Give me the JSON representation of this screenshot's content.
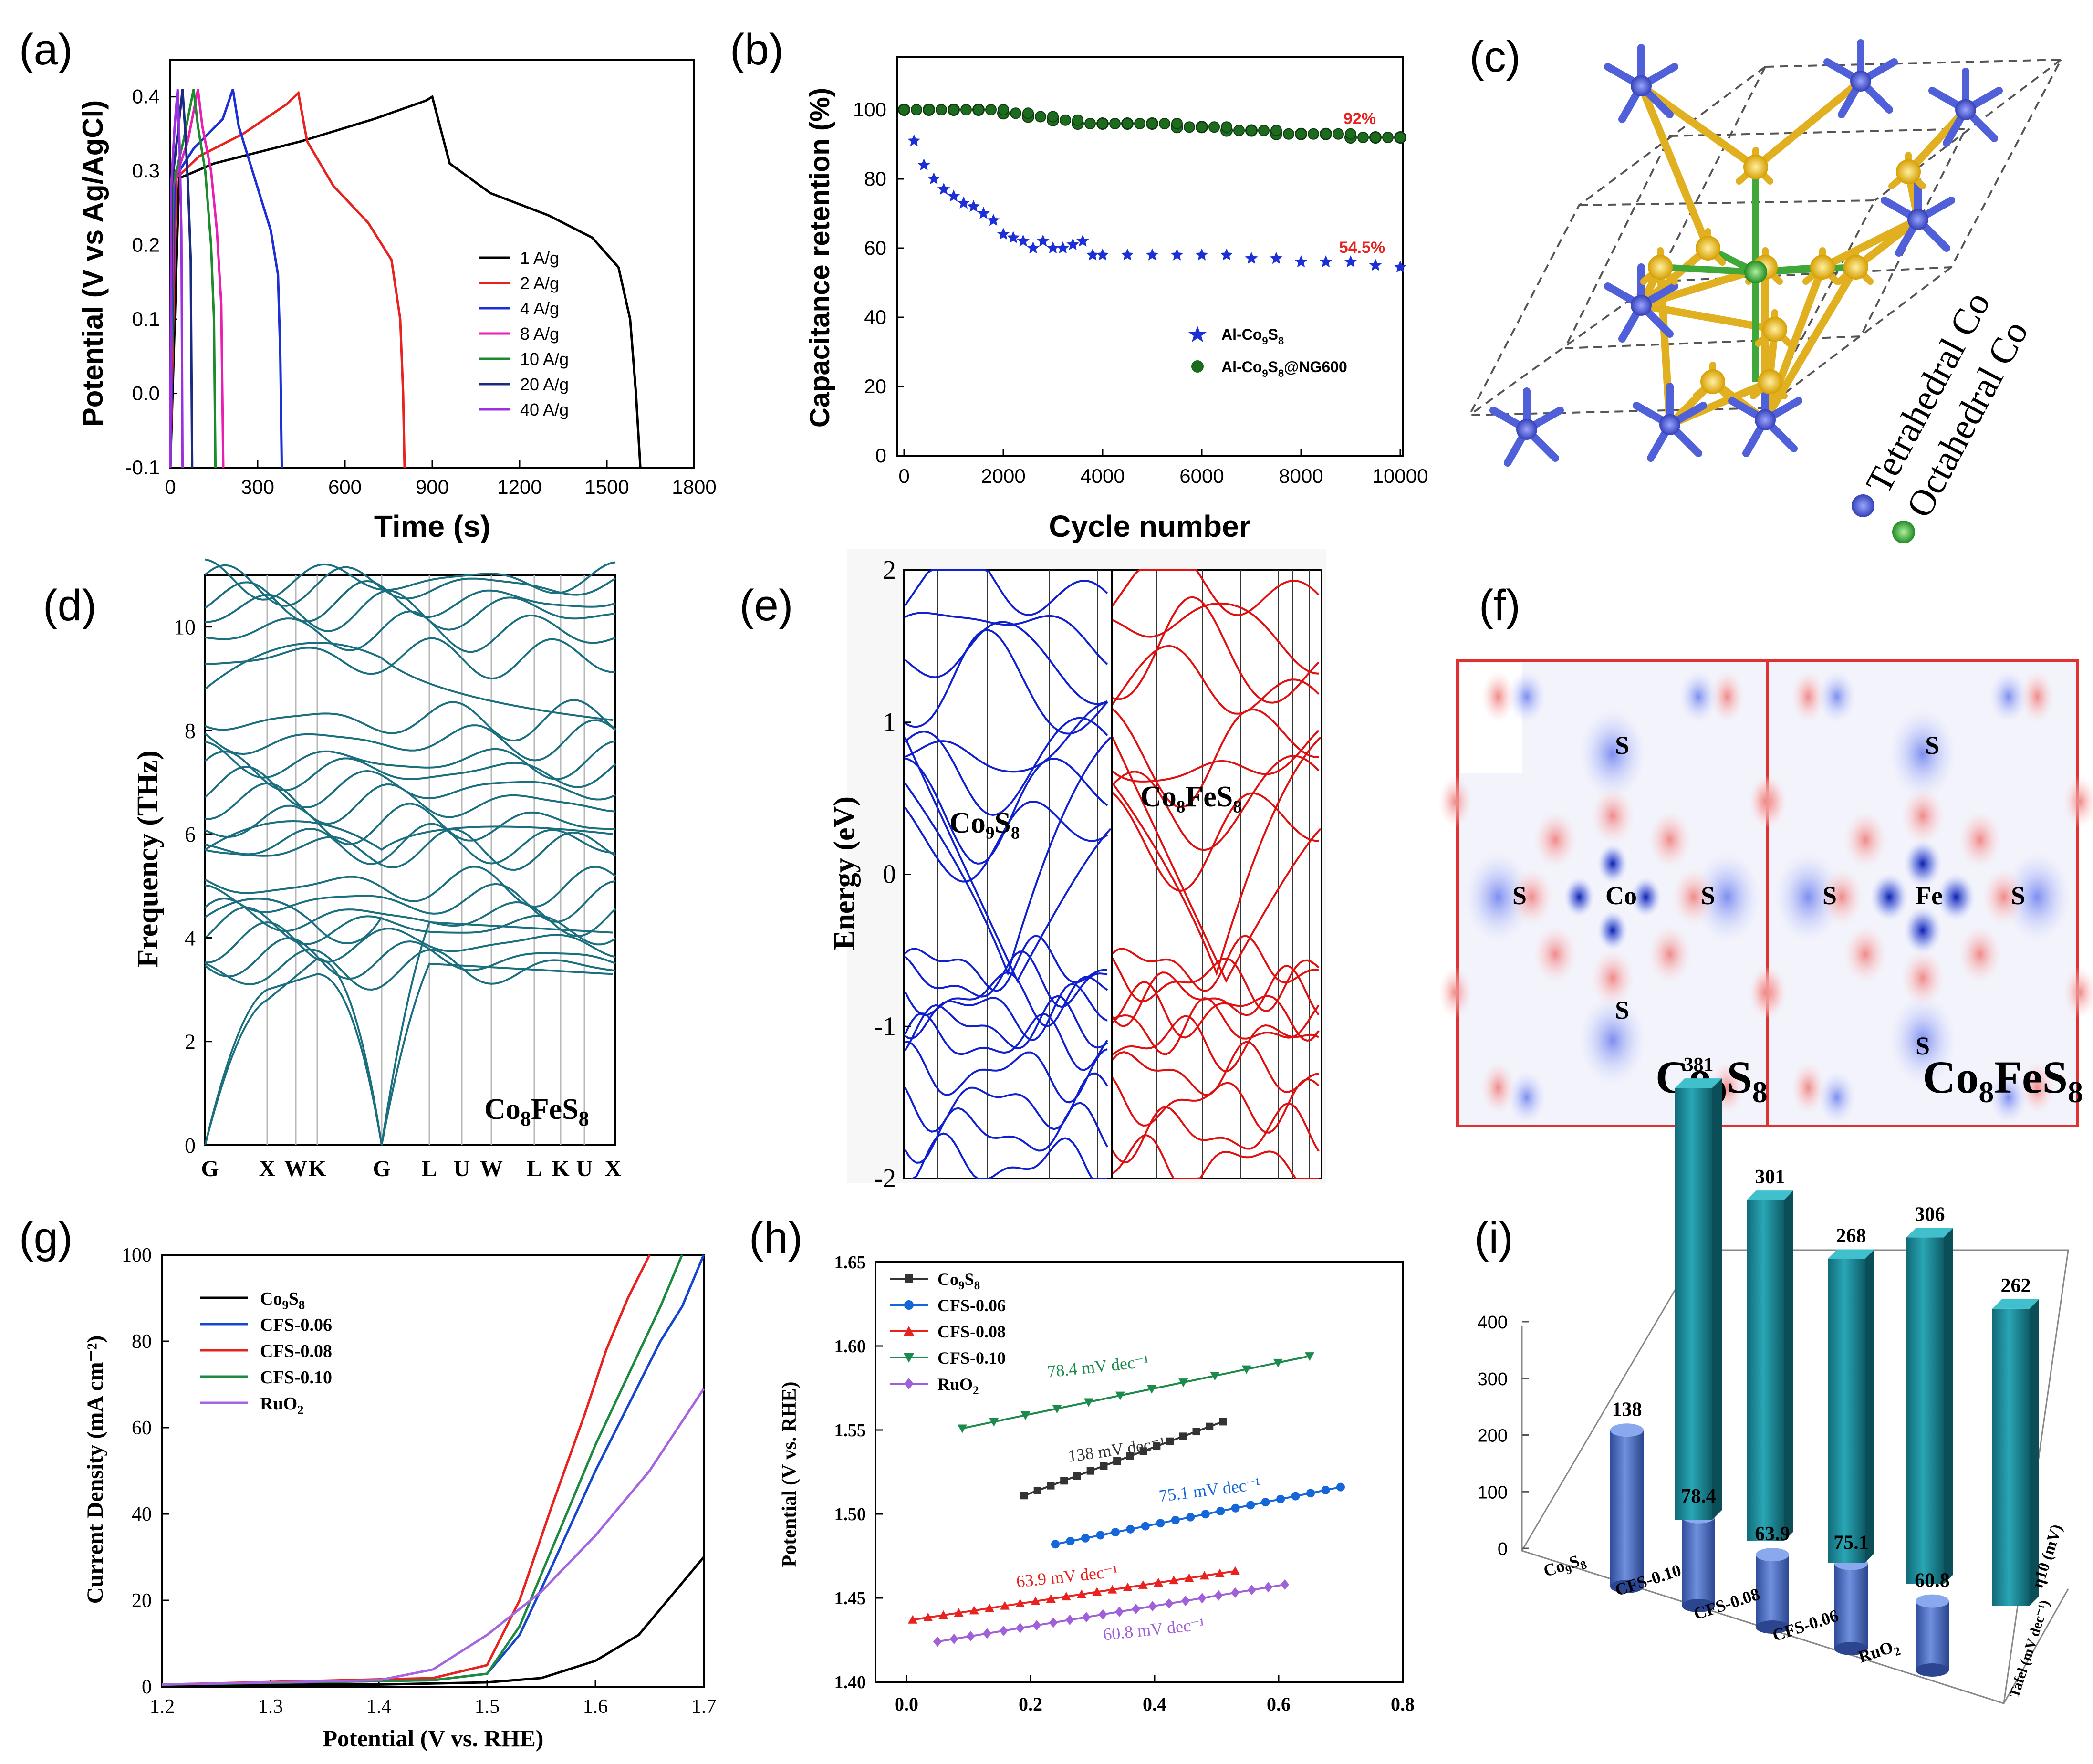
{
  "figure": {
    "panel_labels": [
      "(a)",
      "(b)",
      "(c)",
      "(d)",
      "(e)",
      "(f)",
      "(g)",
      "(h)",
      "(i)"
    ]
  },
  "chart_data": [
    {
      "id": "a",
      "type": "line",
      "xlabel": "Time (s)",
      "ylabel": "Potential (V vs Ag/AgCl)",
      "xlim": [
        0,
        1800
      ],
      "ylim": [
        -0.1,
        0.45
      ],
      "xticks": [
        "0",
        "300",
        "600",
        "900",
        "1200",
        "1500",
        "1800"
      ],
      "yticks": [
        "-0.1",
        "0.0",
        "0.1",
        "0.2",
        "0.3",
        "0.4"
      ],
      "legend_position": "center-right",
      "series": [
        {
          "name": "1 A/g",
          "color": "#000000",
          "x": [
            0,
            30,
            150,
            450,
            700,
            880,
            900,
            960,
            1100,
            1300,
            1450,
            1540,
            1580,
            1600,
            1615
          ],
          "y": [
            -0.1,
            0.29,
            0.31,
            0.34,
            0.37,
            0.395,
            0.4,
            0.31,
            0.27,
            0.24,
            0.21,
            0.17,
            0.1,
            0.0,
            -0.1
          ]
        },
        {
          "name": "2 A/g",
          "color": "#e8231f",
          "x": [
            0,
            20,
            100,
            250,
            400,
            440,
            470,
            560,
            680,
            760,
            790,
            800,
            805
          ],
          "y": [
            -0.1,
            0.29,
            0.32,
            0.35,
            0.39,
            0.405,
            0.34,
            0.28,
            0.23,
            0.18,
            0.1,
            0.0,
            -0.1
          ]
        },
        {
          "name": "4 A/g",
          "color": "#1c2fd6",
          "x": [
            0,
            15,
            80,
            180,
            215,
            235,
            290,
            345,
            370,
            378,
            383
          ],
          "y": [
            -0.1,
            0.29,
            0.33,
            0.37,
            0.41,
            0.36,
            0.29,
            0.22,
            0.16,
            0.05,
            -0.1
          ]
        },
        {
          "name": "8 A/g",
          "color": "#e81fb0",
          "x": [
            0,
            10,
            60,
            95,
            110,
            140,
            160,
            175,
            182
          ],
          "y": [
            -0.1,
            0.28,
            0.34,
            0.41,
            0.36,
            0.3,
            0.22,
            0.12,
            -0.1
          ]
        },
        {
          "name": "10 A/g",
          "color": "#1e8a2e",
          "x": [
            0,
            8,
            45,
            80,
            95,
            120,
            140,
            150,
            155
          ],
          "y": [
            -0.1,
            0.28,
            0.34,
            0.41,
            0.36,
            0.3,
            0.2,
            0.1,
            -0.1
          ]
        },
        {
          "name": "20 A/g",
          "color": "#1a2a80",
          "x": [
            0,
            5,
            25,
            42,
            52,
            62,
            70,
            75
          ],
          "y": [
            -0.1,
            0.28,
            0.35,
            0.41,
            0.35,
            0.27,
            0.18,
            -0.1
          ]
        },
        {
          "name": "40 A/g",
          "color": "#9b30e0",
          "x": [
            0,
            3,
            15,
            25,
            32,
            38,
            42
          ],
          "y": [
            -0.1,
            0.28,
            0.36,
            0.41,
            0.33,
            0.22,
            -0.1
          ]
        }
      ]
    },
    {
      "id": "b",
      "type": "scatter",
      "xlabel": "Cycle number",
      "ylabel": "Capacitance retention (%)",
      "xlim": [
        0,
        10000
      ],
      "ylim": [
        0,
        115
      ],
      "xticks": [
        "0",
        "2000",
        "4000",
        "6000",
        "8000",
        "10000"
      ],
      "yticks": [
        "0",
        "20",
        "40",
        "60",
        "80",
        "100"
      ],
      "annotations": [
        {
          "text": "92%",
          "x": 9700,
          "y": 98
        },
        {
          "text": "54.5%",
          "x": 9600,
          "y": 59
        }
      ],
      "series": [
        {
          "name": "Al-Co9S8",
          "legend_text": "Al-Co",
          "sub1": "9",
          "mid": "S",
          "sub2": "8",
          "tail": "",
          "color": "#1c2fd6",
          "marker": "star",
          "x": [
            200,
            400,
            600,
            800,
            1000,
            1200,
            1400,
            1600,
            1800,
            2000,
            2200,
            2400,
            2600,
            2800,
            3000,
            3200,
            3400,
            3600,
            3800,
            4000,
            4500,
            5000,
            5500,
            6000,
            6500,
            7000,
            7500,
            8000,
            8500,
            9000,
            9500,
            10000
          ],
          "y": [
            91,
            84,
            80,
            77,
            75,
            73,
            72,
            70,
            68,
            64,
            63,
            62,
            60,
            62,
            60,
            60,
            61,
            62,
            58,
            58,
            58,
            58,
            58,
            58,
            58,
            57,
            57,
            56,
            56,
            56,
            55,
            54.5
          ]
        },
        {
          "name": "Al-Co9S8@NG600",
          "legend_text": "Al-Co",
          "sub1": "9",
          "mid": "S",
          "sub2": "8",
          "tail": "@NG600",
          "color": "#1d6b1f",
          "marker": "circle",
          "x": [
            0,
            500,
            1000,
            1500,
            2000,
            2500,
            3000,
            3500,
            4000,
            4500,
            5000,
            5500,
            6000,
            6500,
            7000,
            7500,
            8000,
            8500,
            9000,
            9500,
            10000
          ],
          "y": [
            100,
            100,
            100,
            100,
            99,
            98,
            97,
            96,
            96,
            96,
            96,
            95,
            95,
            94,
            94,
            93,
            93,
            93,
            92,
            92,
            92
          ]
        }
      ]
    },
    {
      "id": "d",
      "type": "line",
      "ylabel": "Frequency (THz)",
      "ylim": [
        0,
        11
      ],
      "yticks": [
        "0",
        "2",
        "4",
        "6",
        "8",
        "10"
      ],
      "kpoints": [
        "G",
        "X",
        "W",
        "K",
        "G",
        "L",
        "U",
        "W",
        "L",
        "K",
        "U",
        "X"
      ],
      "label": "Co8FeS8",
      "label_parts": {
        "a": "Co",
        "b": "8",
        "c": "FeS",
        "d": "8"
      },
      "color": "#1a6f7f"
    },
    {
      "id": "e",
      "type": "line",
      "ylabel": "Energy (eV)",
      "ylim": [
        -2,
        2
      ],
      "yticks": [
        "-2",
        "-1",
        "0",
        "1",
        "2"
      ],
      "labels": [
        "Co₉S₈",
        "Co₈FeS₈"
      ],
      "colors": [
        "#1020d0",
        "#e01010"
      ]
    },
    {
      "id": "g",
      "type": "line",
      "xlabel": "Potential (V vs. RHE)",
      "ylabel": "Current Density (mA cm⁻²)",
      "xlim": [
        1.2,
        1.7
      ],
      "ylim": [
        0,
        100
      ],
      "xticks": [
        "1.2",
        "1.3",
        "1.4",
        "1.5",
        "1.6",
        "1.7"
      ],
      "yticks": [
        "0",
        "20",
        "40",
        "60",
        "80",
        "100"
      ],
      "series": [
        {
          "name": "Co9S8",
          "legend_main": "Co",
          "sub1": "9",
          "mid": "S",
          "sub2": "8",
          "color": "#000000",
          "x": [
            1.2,
            1.4,
            1.5,
            1.55,
            1.6,
            1.64,
            1.66,
            1.7
          ],
          "y": [
            0.5,
            0.5,
            1.0,
            2.0,
            6.0,
            12.0,
            18.0,
            30.0
          ]
        },
        {
          "name": "CFS-0.06",
          "legend_main": "CFS-0.06",
          "color": "#1546d0",
          "x": [
            1.2,
            1.45,
            1.5,
            1.53,
            1.56,
            1.6,
            1.63,
            1.66,
            1.68,
            1.7
          ],
          "y": [
            0.5,
            1.5,
            3.0,
            12.0,
            28.0,
            50.0,
            65.0,
            80.0,
            88.0,
            100.0
          ]
        },
        {
          "name": "CFS-0.08",
          "legend_main": "CFS-0.08",
          "color": "#e8231f",
          "x": [
            1.2,
            1.45,
            1.5,
            1.53,
            1.56,
            1.59,
            1.61,
            1.63,
            1.65
          ],
          "y": [
            0.5,
            2.0,
            5.0,
            20.0,
            42.0,
            63.0,
            78.0,
            90.0,
            100.0
          ]
        },
        {
          "name": "CFS-0.10",
          "legend_main": "CFS-0.10",
          "color": "#1e8a40",
          "x": [
            1.2,
            1.45,
            1.5,
            1.53,
            1.56,
            1.6,
            1.63,
            1.66,
            1.68
          ],
          "y": [
            0.5,
            1.5,
            3.0,
            14.0,
            32.0,
            56.0,
            72.0,
            88.0,
            100.0
          ]
        },
        {
          "name": "RuO2",
          "legend_main": "RuO",
          "sub1": "2",
          "color": "#a565e0",
          "x": [
            1.2,
            1.4,
            1.45,
            1.5,
            1.55,
            1.6,
            1.65,
            1.7
          ],
          "y": [
            0.5,
            1.5,
            4.0,
            12.0,
            22.0,
            35.0,
            50.0,
            69.0
          ]
        }
      ]
    },
    {
      "id": "h",
      "type": "scatter",
      "ylabel": "Potential (V vs. RHE)",
      "xlim": [
        -0.05,
        0.8
      ],
      "ylim": [
        1.4,
        1.65
      ],
      "xticks": [
        "0.0",
        "0.2",
        "0.4",
        "0.6",
        "0.8"
      ],
      "yticks": [
        "1.40",
        "1.45",
        "1.50",
        "1.55",
        "1.60",
        "1.65"
      ],
      "series": [
        {
          "name": "Co9S8",
          "legend_main": "Co",
          "sub1": "9",
          "mid": "S",
          "sub2": "8",
          "color": "#333333",
          "marker": "square",
          "x0": 0.19,
          "x1": 0.51,
          "y0": 1.511,
          "y1": 1.555,
          "n": 16,
          "slope": "138 mV dec⁻¹"
        },
        {
          "name": "CFS-0.06",
          "legend_main": "CFS-0.06",
          "color": "#1566d8",
          "marker": "circle",
          "x0": 0.24,
          "x1": 0.7,
          "y0": 1.482,
          "y1": 1.516,
          "n": 20,
          "slope": "75.1 mV dec⁻¹"
        },
        {
          "name": "CFS-0.08",
          "legend_main": "CFS-0.08",
          "color": "#e8231f",
          "marker": "triangle",
          "x0": 0.01,
          "x1": 0.53,
          "y0": 1.437,
          "y1": 1.466,
          "n": 22,
          "slope": "63.9 mV dec⁻¹"
        },
        {
          "name": "CFS-0.10",
          "legend_main": "CFS-0.10",
          "color": "#1b8a4a",
          "marker": "tri-down",
          "x0": 0.09,
          "x1": 0.65,
          "y0": 1.551,
          "y1": 1.594,
          "n": 12,
          "slope": "78.4 mV dec⁻¹"
        },
        {
          "name": "RuO2",
          "legend_main": "RuO",
          "sub1": "2",
          "color": "#a060d8",
          "marker": "diamond",
          "x0": 0.05,
          "x1": 0.61,
          "y0": 1.424,
          "y1": 1.458,
          "n": 22,
          "slope": "60.8 mV dec⁻¹"
        }
      ]
    },
    {
      "id": "i",
      "type": "bar",
      "categories": [
        "Co9S8",
        "CFS-0.10",
        "CFS-0.08",
        "CFS-0.06",
        "RuO2"
      ],
      "category_labels": [
        {
          "main": "Co",
          "sub1": "9",
          "mid": "S",
          "sub2": "8"
        },
        {
          "main": "CFS-0.10"
        },
        {
          "main": "CFS-0.08"
        },
        {
          "main": "CFS-0.06"
        },
        {
          "main": "RuO",
          "sub1": "2"
        }
      ],
      "series": [
        {
          "name": "Tafel (mV dec⁻¹)",
          "values": [
            138,
            78.4,
            63.9,
            75.1,
            60.8
          ],
          "labels": [
            "138",
            "78.4",
            "63.9",
            "75.1",
            "60.8"
          ],
          "color": "#4a6fc0"
        },
        {
          "name": "η10 (mV)",
          "values": [
            381,
            301,
            268,
            306,
            262
          ],
          "labels": [
            "381",
            "301",
            "268",
            "306",
            "262"
          ],
          "color": "#1a8a9a"
        }
      ],
      "zlim": [
        0,
        400
      ],
      "zticks": [
        "0",
        "100",
        "200",
        "300",
        "400"
      ]
    }
  ],
  "structure_c": {
    "legend": [
      "Tetrahedral Co",
      "Octahedral Co"
    ],
    "colors": {
      "tetrahedral": "#5a67d8",
      "octahedral": "#2fa832",
      "sulfur": "#e6b820"
    }
  },
  "charge_f": {
    "panels": [
      {
        "title_parts": {
          "a": "Co",
          "b": "9",
          "c": "S",
          "d": "8"
        },
        "center": "Co",
        "neighbors": [
          "S",
          "S",
          "S",
          "S"
        ]
      },
      {
        "title_parts": {
          "a": "Co",
          "b": "8",
          "c": "FeS",
          "d": "8"
        },
        "center": "Fe",
        "neighbors": [
          "S",
          "S",
          "S",
          "S"
        ]
      }
    ],
    "frame_color": "#e03030"
  }
}
